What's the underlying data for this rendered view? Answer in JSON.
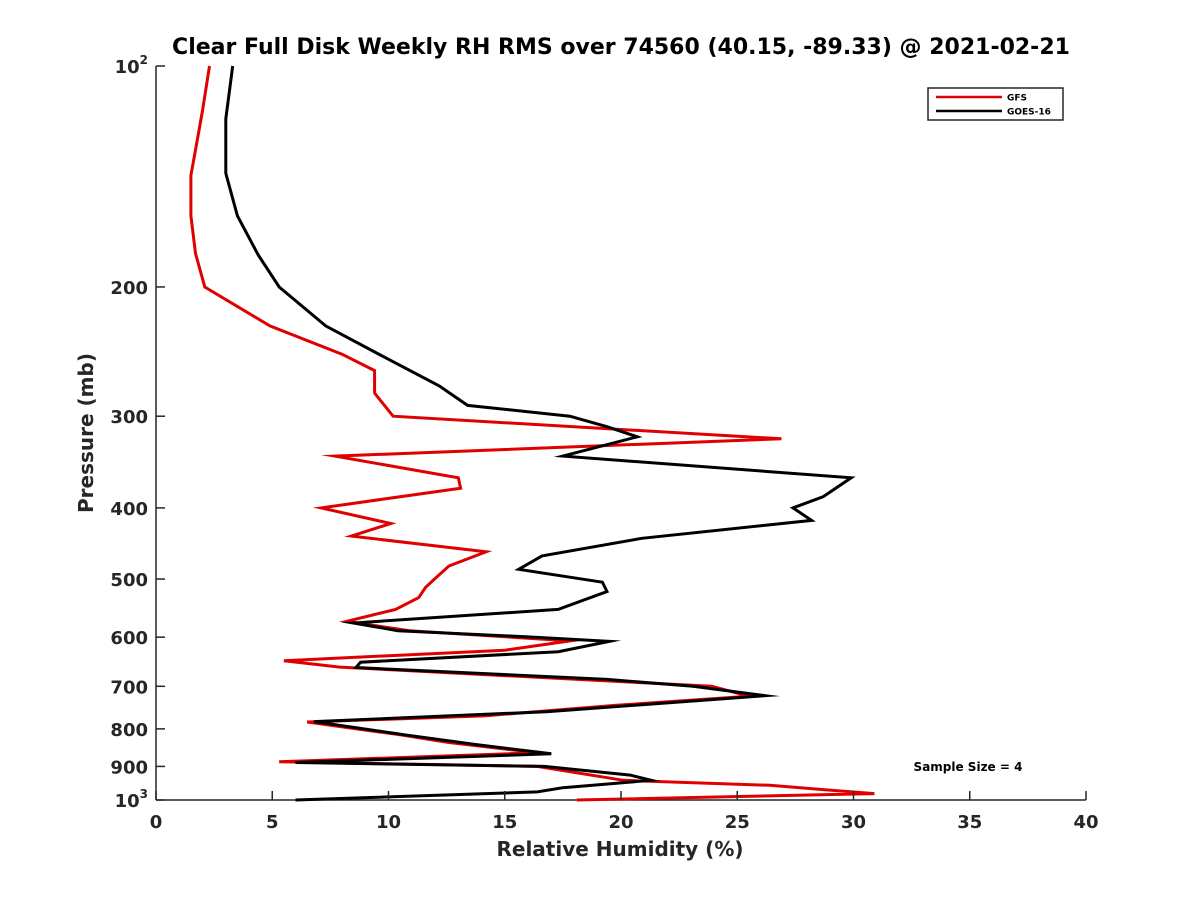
{
  "chart_data": {
    "type": "line",
    "title": "Clear Full Disk Weekly RH RMS over 74560 (40.15, -89.33) @ 2021-02-21",
    "xlabel": "Relative Humidity (%)",
    "ylabel": "Pressure (mb)",
    "xlim": [
      0,
      40
    ],
    "ylim": [
      100,
      1000
    ],
    "y_scale": "log",
    "y_reversed": true,
    "x_ticks": [
      "0",
      "5",
      "10",
      "15",
      "20",
      "25",
      "30",
      "35",
      "40"
    ],
    "y_ticks": [
      {
        "value": 100,
        "base": "10",
        "exp": "2"
      },
      {
        "value": 200,
        "label": "200"
      },
      {
        "value": 300,
        "label": "300"
      },
      {
        "value": 400,
        "label": "400"
      },
      {
        "value": 500,
        "label": "500"
      },
      {
        "value": 600,
        "label": "600"
      },
      {
        "value": 700,
        "label": "700"
      },
      {
        "value": 800,
        "label": "800"
      },
      {
        "value": 900,
        "label": "900"
      },
      {
        "value": 1000,
        "base": "10",
        "exp": "3"
      }
    ],
    "grid": false,
    "legend_position": "top-right",
    "annotation": "Sample Size = 4",
    "series": [
      {
        "name": "GFS",
        "color": "#e00000",
        "points": [
          [
            2.3,
            100
          ],
          [
            2.0,
            115
          ],
          [
            1.8,
            125
          ],
          [
            1.5,
            141
          ],
          [
            1.5,
            160
          ],
          [
            1.7,
            180
          ],
          [
            2.1,
            200
          ],
          [
            4.9,
            226
          ],
          [
            8.0,
            247
          ],
          [
            9.4,
            260
          ],
          [
            9.4,
            279
          ],
          [
            10.2,
            300
          ],
          [
            26.9,
            322
          ],
          [
            7.7,
            340
          ],
          [
            13.0,
            364
          ],
          [
            13.1,
            376
          ],
          [
            7.1,
            400
          ],
          [
            10.1,
            420
          ],
          [
            8.4,
            437
          ],
          [
            14.2,
            459
          ],
          [
            12.6,
            480
          ],
          [
            12.1,
            496
          ],
          [
            11.6,
            513
          ],
          [
            11.3,
            530
          ],
          [
            10.3,
            550
          ],
          [
            8.2,
            571
          ],
          [
            10.9,
            588
          ],
          [
            17.8,
            607
          ],
          [
            15.0,
            625
          ],
          [
            5.5,
            646
          ],
          [
            7.9,
            659
          ],
          [
            23.9,
            700
          ],
          [
            25.5,
            722
          ],
          [
            19.8,
            743
          ],
          [
            14.1,
            768
          ],
          [
            6.5,
            783
          ],
          [
            10.5,
            815
          ],
          [
            12.6,
            835
          ],
          [
            16.4,
            862
          ],
          [
            5.3,
            887
          ],
          [
            16.4,
            900
          ],
          [
            20.1,
            940
          ],
          [
            26.4,
            955
          ],
          [
            28.7,
            968
          ],
          [
            30.9,
            980
          ],
          [
            18.1,
            1000
          ]
        ]
      },
      {
        "name": "GOES-16",
        "color": "#000000",
        "points": [
          [
            3.3,
            100
          ],
          [
            3.0,
            118
          ],
          [
            3.0,
            140
          ],
          [
            3.5,
            160
          ],
          [
            4.4,
            181
          ],
          [
            5.3,
            200
          ],
          [
            7.3,
            226
          ],
          [
            9.9,
            250
          ],
          [
            12.2,
            273
          ],
          [
            13.4,
            290
          ],
          [
            17.8,
            300
          ],
          [
            19.4,
            310
          ],
          [
            20.7,
            320
          ],
          [
            17.5,
            340
          ],
          [
            29.9,
            364
          ],
          [
            28.7,
            386
          ],
          [
            27.4,
            400
          ],
          [
            28.2,
            416
          ],
          [
            20.9,
            440
          ],
          [
            16.6,
            465
          ],
          [
            15.6,
            485
          ],
          [
            19.2,
            505
          ],
          [
            19.4,
            520
          ],
          [
            17.3,
            550
          ],
          [
            8.5,
            574
          ],
          [
            10.4,
            588
          ],
          [
            16.3,
            600
          ],
          [
            19.5,
            608
          ],
          [
            17.3,
            628
          ],
          [
            8.8,
            649
          ],
          [
            8.6,
            660
          ],
          [
            19.4,
            685
          ],
          [
            23.1,
            700
          ],
          [
            26.2,
            721
          ],
          [
            16.8,
            758
          ],
          [
            6.8,
            782
          ],
          [
            10.7,
            815
          ],
          [
            13.7,
            840
          ],
          [
            17.0,
            865
          ],
          [
            6.0,
            889
          ],
          [
            16.7,
            900
          ],
          [
            20.4,
            925
          ],
          [
            21.3,
            940
          ],
          [
            17.5,
            962
          ],
          [
            16.4,
            975
          ],
          [
            6.0,
            1000
          ]
        ]
      }
    ]
  }
}
